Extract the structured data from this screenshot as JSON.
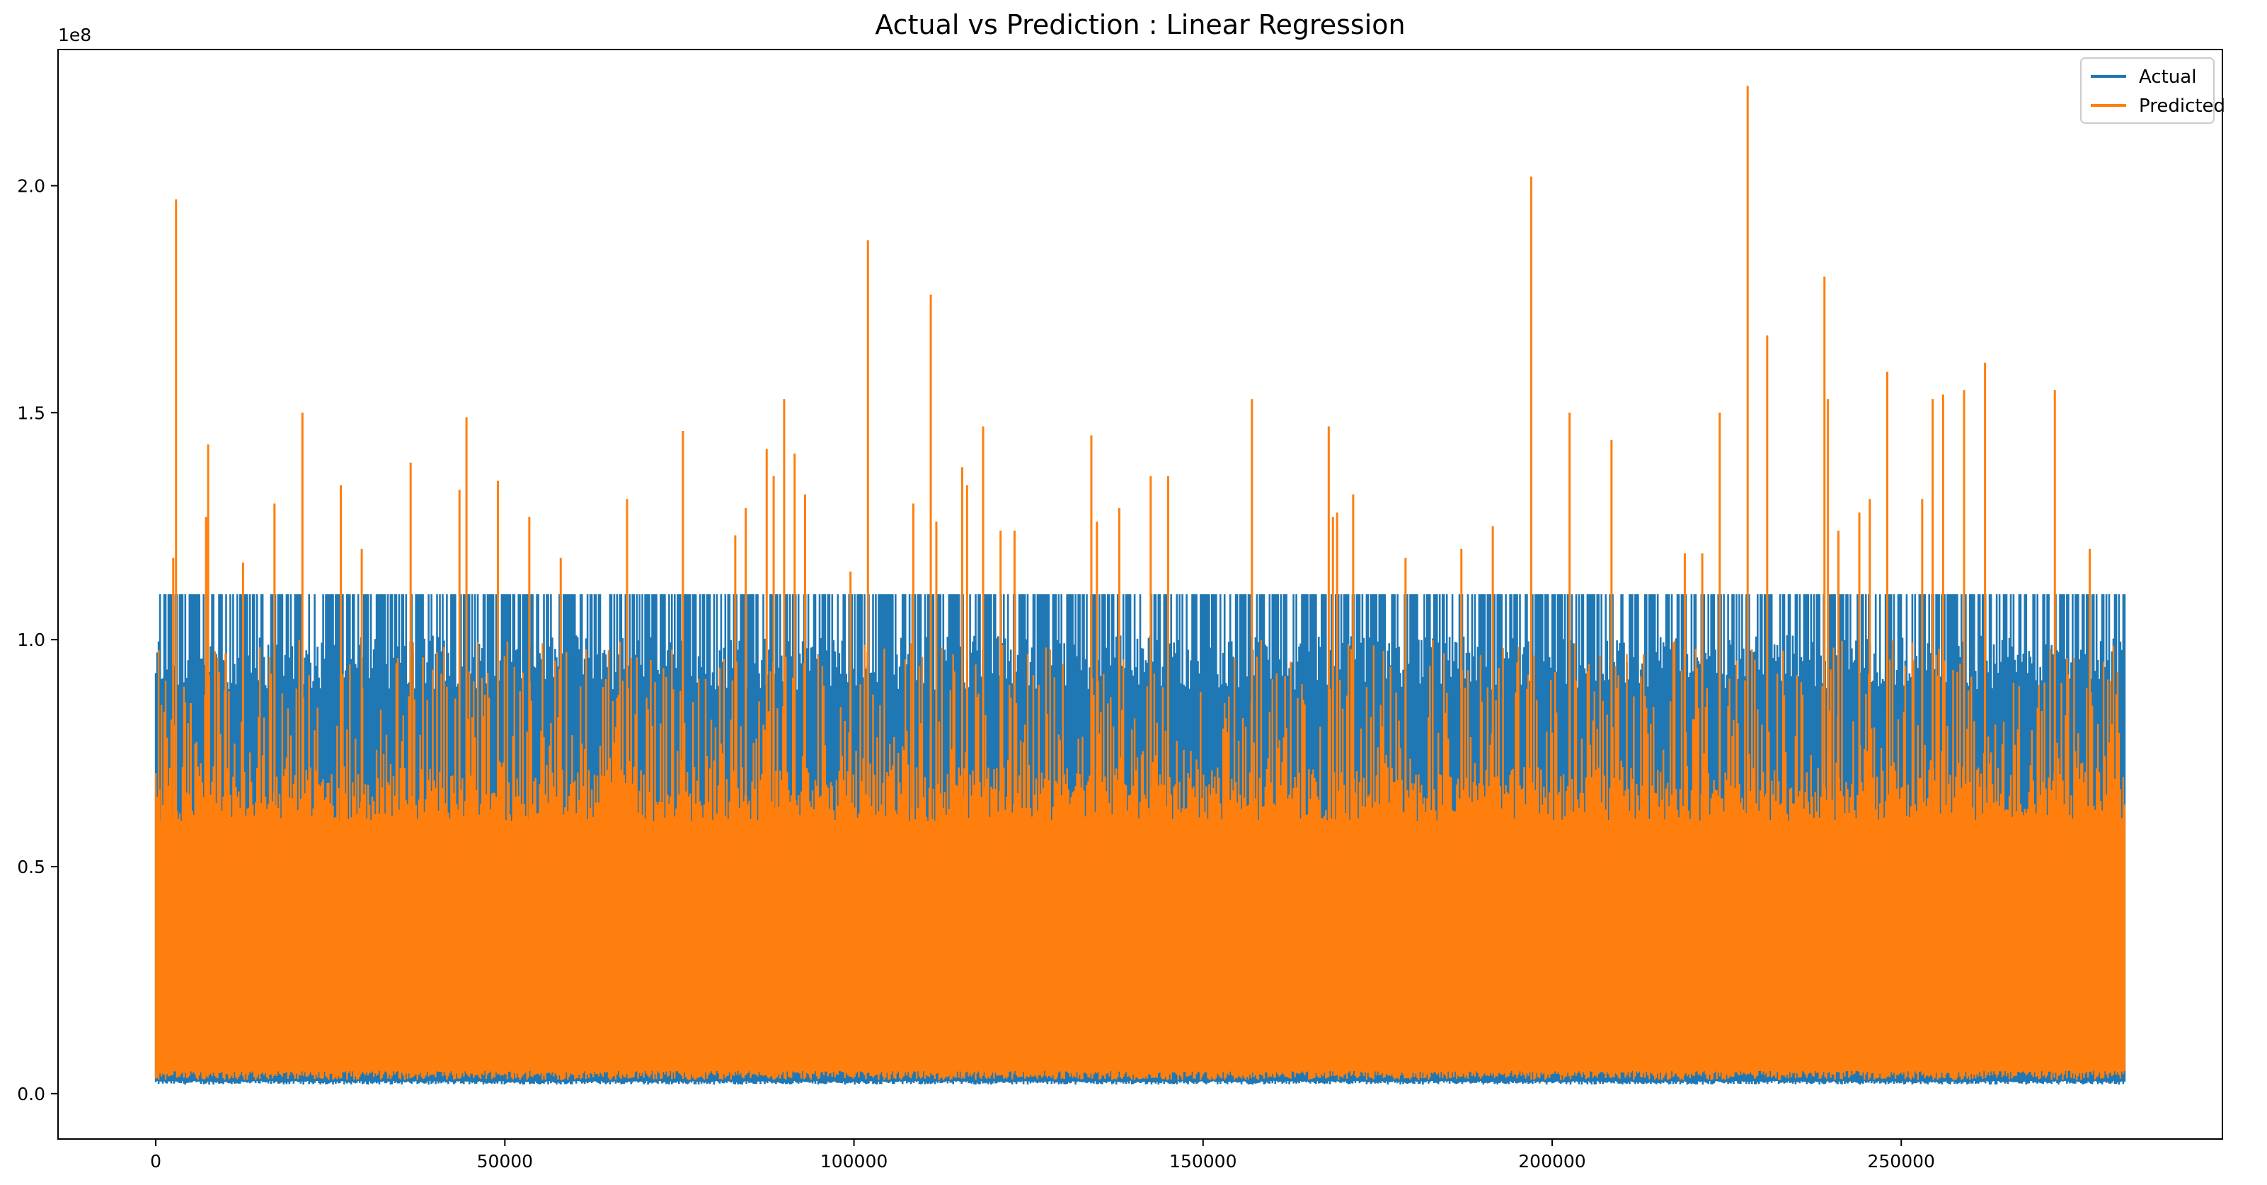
{
  "chart_data": {
    "type": "line",
    "title": "Actual vs Prediction : Linear Regression",
    "xlabel": "",
    "ylabel": "",
    "y_offset_label": "1e8",
    "xlim": [
      -14000,
      296000
    ],
    "ylim": [
      -0.1,
      2.3
    ],
    "x_ticks": [
      0,
      50000,
      100000,
      150000,
      200000,
      250000
    ],
    "x_tick_labels": [
      "0",
      "50000",
      "100000",
      "150000",
      "200000",
      "250000"
    ],
    "y_ticks": [
      0.0,
      0.5,
      1.0,
      1.5,
      2.0
    ],
    "y_tick_labels": [
      "0.0",
      "0.5",
      "1.0",
      "1.5",
      "2.0"
    ],
    "grid": false,
    "legend_position": "top-right",
    "n_points": 282000,
    "series": [
      {
        "name": "Actual",
        "color": "#1f77b4",
        "band_min": 0.02,
        "band_max": 1.1,
        "dense_max": 0.95
      },
      {
        "name": "Predicted",
        "color": "#ff7f0e",
        "band_min": 0.03,
        "dense_max": 0.6,
        "spikes": [
          [
            500,
            0.67
          ],
          [
            1500,
            0.65
          ],
          [
            2500,
            1.18
          ],
          [
            2900,
            1.97
          ],
          [
            5000,
            0.86
          ],
          [
            7200,
            1.27
          ],
          [
            7500,
            1.43
          ],
          [
            10000,
            0.97
          ],
          [
            12500,
            1.17
          ],
          [
            17000,
            1.3
          ],
          [
            21000,
            1.5
          ],
          [
            26500,
            1.34
          ],
          [
            29500,
            1.2
          ],
          [
            36500,
            1.39
          ],
          [
            43500,
            1.33
          ],
          [
            44500,
            1.49
          ],
          [
            49000,
            1.35
          ],
          [
            53500,
            1.27
          ],
          [
            58000,
            1.18
          ],
          [
            67500,
            1.31
          ],
          [
            75500,
            1.46
          ],
          [
            83000,
            1.23
          ],
          [
            84500,
            1.29
          ],
          [
            87500,
            1.42
          ],
          [
            88500,
            1.36
          ],
          [
            90000,
            1.53
          ],
          [
            91500,
            1.41
          ],
          [
            93000,
            1.32
          ],
          [
            99500,
            1.15
          ],
          [
            102000,
            1.88
          ],
          [
            108500,
            1.3
          ],
          [
            111000,
            1.76
          ],
          [
            111800,
            1.26
          ],
          [
            115500,
            1.38
          ],
          [
            116200,
            1.34
          ],
          [
            118500,
            1.47
          ],
          [
            121000,
            1.24
          ],
          [
            123000,
            1.24
          ],
          [
            134000,
            1.45
          ],
          [
            134800,
            1.26
          ],
          [
            138000,
            1.29
          ],
          [
            142500,
            1.36
          ],
          [
            145000,
            1.36
          ],
          [
            157000,
            1.53
          ],
          [
            168000,
            1.47
          ],
          [
            168600,
            1.27
          ],
          [
            169200,
            1.28
          ],
          [
            171500,
            1.32
          ],
          [
            179000,
            1.18
          ],
          [
            187000,
            1.2
          ],
          [
            191500,
            1.25
          ],
          [
            197000,
            2.02
          ],
          [
            202500,
            1.5
          ],
          [
            208500,
            1.44
          ],
          [
            219000,
            1.19
          ],
          [
            221500,
            1.19
          ],
          [
            224000,
            1.5
          ],
          [
            228000,
            2.22
          ],
          [
            230800,
            1.67
          ],
          [
            239000,
            1.8
          ],
          [
            239500,
            1.53
          ],
          [
            241000,
            1.24
          ],
          [
            244000,
            1.28
          ],
          [
            245500,
            1.31
          ],
          [
            248000,
            1.59
          ],
          [
            253000,
            1.31
          ],
          [
            254500,
            1.53
          ],
          [
            256000,
            1.54
          ],
          [
            259000,
            1.55
          ],
          [
            262000,
            1.61
          ],
          [
            272000,
            1.55
          ],
          [
            277000,
            1.2
          ]
        ]
      }
    ]
  }
}
